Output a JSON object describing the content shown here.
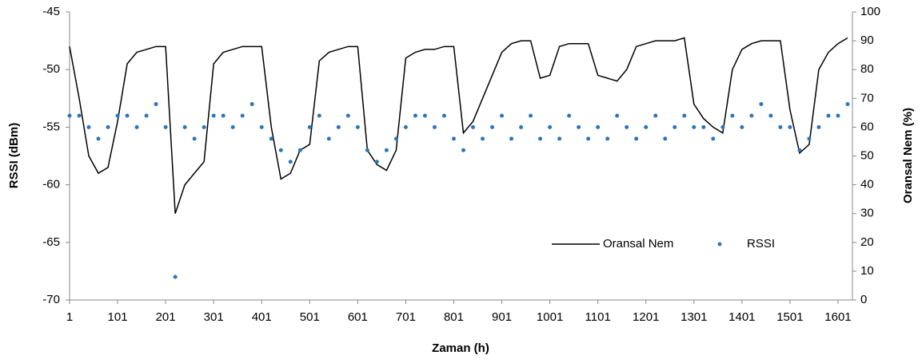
{
  "chart_data": {
    "type": "line-scatter",
    "x_label": "Zaman (h)",
    "y_label": "RSSI (dBm)",
    "y2_label": "Oransal Nem (%)",
    "xlim": [
      1,
      1631
    ],
    "xticks": [
      1,
      101,
      201,
      301,
      401,
      501,
      601,
      701,
      801,
      901,
      1001,
      1101,
      1201,
      1301,
      1401,
      1501,
      1601
    ],
    "ylim": [
      -70,
      -45
    ],
    "yticks": [
      -70,
      -65,
      -60,
      -55,
      -50,
      -45
    ],
    "y2lim": [
      0,
      100
    ],
    "y2ticks": [
      0,
      10,
      20,
      30,
      40,
      50,
      60,
      70,
      80,
      90,
      100
    ],
    "legend": "lower-right",
    "x": [
      1,
      21,
      41,
      61,
      81,
      101,
      121,
      141,
      161,
      181,
      201,
      221,
      241,
      261,
      281,
      301,
      321,
      341,
      361,
      381,
      401,
      421,
      441,
      461,
      481,
      501,
      521,
      541,
      561,
      581,
      601,
      621,
      641,
      661,
      681,
      701,
      721,
      741,
      761,
      781,
      801,
      821,
      841,
      861,
      881,
      901,
      921,
      941,
      961,
      981,
      1001,
      1021,
      1041,
      1061,
      1081,
      1101,
      1121,
      1141,
      1161,
      1181,
      1201,
      1221,
      1241,
      1261,
      1281,
      1301,
      1321,
      1341,
      1361,
      1381,
      1401,
      1421,
      1441,
      1461,
      1481,
      1501,
      1521,
      1541,
      1561,
      1581,
      1601,
      1621
    ],
    "series": [
      {
        "name": "Oransal Nem",
        "kind": "line",
        "axis": "y2",
        "color": "#000000",
        "values": [
          88,
          70,
          50,
          44,
          46,
          62,
          82,
          86,
          87,
          88,
          88,
          30,
          40,
          44,
          48,
          82,
          86,
          87,
          88,
          88,
          88,
          60,
          42,
          44,
          52,
          54,
          83,
          86,
          87,
          88,
          88,
          52,
          47,
          45,
          52,
          84,
          86,
          87,
          87,
          88,
          88,
          58,
          62,
          70,
          78,
          86,
          89,
          90,
          90,
          77,
          78,
          88,
          89,
          89,
          89,
          78,
          77,
          76,
          80,
          88,
          89,
          90,
          90,
          90,
          91,
          68,
          63,
          60,
          58,
          80,
          87,
          89,
          90,
          90,
          90,
          66,
          51,
          54,
          80,
          86,
          89,
          91
        ]
      },
      {
        "name": "RSSI",
        "kind": "scatter",
        "color": "#2e75b6",
        "values": [
          -54,
          -54,
          -55,
          -56,
          -55,
          -54,
          -54,
          -55,
          -54,
          -53,
          -55,
          -68,
          -55,
          -56,
          -55,
          -54,
          -54,
          -55,
          -54,
          -53,
          -55,
          -56,
          -57,
          -58,
          -57,
          -55,
          -54,
          -56,
          -55,
          -54,
          -55,
          -57,
          -58,
          -57,
          -56,
          -55,
          -54,
          -54,
          -55,
          -54,
          -56,
          -57,
          -55,
          -56,
          -55,
          -54,
          -56,
          -55,
          -54,
          -56,
          -55,
          -56,
          -54,
          -55,
          -56,
          -55,
          -56,
          -54,
          -55,
          -56,
          -55,
          -54,
          -56,
          -55,
          -54,
          -55,
          -55,
          -56,
          -55,
          -54,
          -55,
          -54,
          -53,
          -54,
          -55,
          -55,
          -57,
          -56,
          -55,
          -54,
          -54,
          -53
        ]
      }
    ]
  }
}
